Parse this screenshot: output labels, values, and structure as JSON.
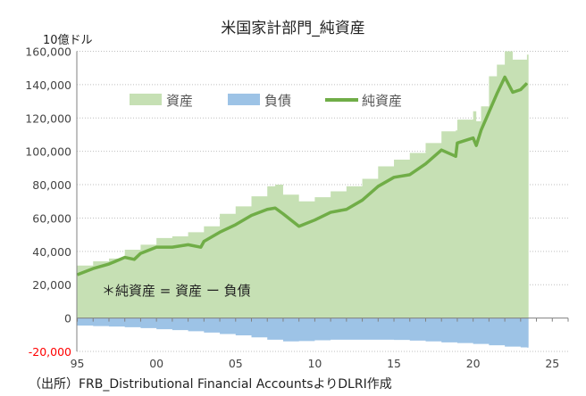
{
  "chart_data": {
    "type": "area",
    "title": "米国家計部門_純資産",
    "ylabel": "10億ドル",
    "xlabel": "",
    "source": "（出所）FRB_Distributional Financial AccountsよりDLRI作成",
    "annotation": "＊純資産 = 資産 ー 負債",
    "xlim": [
      1995,
      2026
    ],
    "ylim": [
      -20000,
      160000
    ],
    "x_ticks": [
      1995,
      2000,
      2005,
      2010,
      2015,
      2020,
      2025
    ],
    "x_tick_labels": [
      "95",
      "00",
      "05",
      "10",
      "15",
      "20",
      "25"
    ],
    "y_ticks": [
      -20000,
      0,
      20000,
      40000,
      60000,
      80000,
      100000,
      120000,
      140000,
      160000
    ],
    "y_tick_labels": [
      "-20,000",
      "0",
      "20,000",
      "40,000",
      "60,000",
      "80,000",
      "100,000",
      "120,000",
      "140,000",
      "160,000"
    ],
    "grid": "horizontal dotted",
    "legend_position": "top-left",
    "series": [
      {
        "name": "資産",
        "style": "area",
        "color": "#c6e0b4",
        "x": [
          1995,
          1996,
          1997,
          1998,
          1999,
          2000,
          2001,
          2002,
          2003,
          2004,
          2005,
          2006,
          2007,
          2007.5,
          2008,
          2009,
          2010,
          2011,
          2012,
          2013,
          2014,
          2015,
          2016,
          2017,
          2018,
          2018.9,
          2019,
          2020,
          2020.2,
          2020.5,
          2021,
          2021.5,
          2022,
          2022.5,
          2023,
          2023.4
        ],
        "values": [
          31500,
          34000,
          35700,
          41000,
          44000,
          48000,
          49000,
          51500,
          55000,
          62500,
          67000,
          73000,
          79000,
          80000,
          74000,
          70000,
          72500,
          76000,
          79000,
          83500,
          91000,
          95000,
          99000,
          105000,
          112000,
          112500,
          119000,
          124000,
          118000,
          127000,
          145000,
          152000,
          160000,
          155000,
          155000,
          158000
        ]
      },
      {
        "name": "負債",
        "style": "area",
        "color": "#9dc3e6",
        "x": [
          1995,
          1996,
          1997,
          1998,
          1999,
          2000,
          2001,
          2002,
          2003,
          2004,
          2005,
          2006,
          2007,
          2008,
          2009,
          2010,
          2011,
          2012,
          2013,
          2014,
          2015,
          2016,
          2017,
          2018,
          2019,
          2020,
          2021,
          2022,
          2023,
          2023.4
        ],
        "values": [
          -4500,
          -4800,
          -5100,
          -5500,
          -6000,
          -6700,
          -7200,
          -7900,
          -8700,
          -9600,
          -10400,
          -11600,
          -13000,
          -14000,
          -13800,
          -13300,
          -13000,
          -13000,
          -13000,
          -13000,
          -13100,
          -13500,
          -14000,
          -14600,
          -15000,
          -15500,
          -16300,
          -17100,
          -17600,
          -17700
        ]
      },
      {
        "name": "純資産",
        "style": "line",
        "color": "#70ad47",
        "x": [
          1995,
          1996,
          1997,
          1998,
          1998.6,
          1999,
          2000,
          2001,
          2002,
          2002.8,
          2003,
          2004,
          2005,
          2006,
          2007,
          2007.5,
          2008,
          2009,
          2010,
          2011,
          2012,
          2013,
          2014,
          2015,
          2016,
          2017,
          2018,
          2018.9,
          2019,
          2020,
          2020.2,
          2020.5,
          2021,
          2021.5,
          2022,
          2022.5,
          2023,
          2023.4
        ],
        "values": [
          26000,
          29700,
          32400,
          36400,
          35200,
          38800,
          42500,
          42500,
          44000,
          42500,
          46000,
          51500,
          56000,
          61600,
          65200,
          66000,
          62500,
          55000,
          58800,
          63400,
          65200,
          70700,
          79000,
          84400,
          86000,
          92500,
          100800,
          97000,
          105000,
          108000,
          103500,
          112600,
          123500,
          134500,
          144500,
          135400,
          137000,
          140800
        ]
      }
    ],
    "colors": {
      "negative_tick": "#ff0000",
      "axis": "#808080",
      "grid": "#bfbfbf"
    }
  }
}
